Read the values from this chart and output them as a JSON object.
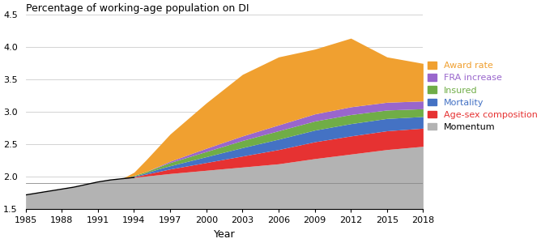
{
  "title": "Percentage of working-age population on DI",
  "xlabel": "Year",
  "years": [
    1985,
    1986,
    1987,
    1988,
    1989,
    1990,
    1991,
    1992,
    1993,
    1994,
    1995,
    1996,
    1997,
    2000,
    2003,
    2006,
    2009,
    2012,
    2015,
    2018
  ],
  "momentum": [
    1.72,
    1.75,
    1.78,
    1.81,
    1.84,
    1.88,
    1.92,
    1.95,
    1.97,
    1.99,
    2.01,
    2.03,
    2.05,
    2.1,
    2.15,
    2.2,
    2.28,
    2.35,
    2.42,
    2.47
  ],
  "age_sex": [
    0.0,
    0.0,
    0.0,
    0.0,
    0.0,
    0.0,
    0.0,
    0.0,
    0.0,
    0.01,
    0.03,
    0.05,
    0.07,
    0.12,
    0.17,
    0.22,
    0.26,
    0.28,
    0.29,
    0.28
  ],
  "mortality": [
    0.0,
    0.0,
    0.0,
    0.0,
    0.0,
    0.0,
    0.0,
    0.0,
    0.0,
    0.01,
    0.02,
    0.04,
    0.05,
    0.09,
    0.13,
    0.16,
    0.18,
    0.19,
    0.19,
    0.18
  ],
  "insured": [
    0.0,
    0.0,
    0.0,
    0.0,
    0.0,
    0.0,
    0.0,
    0.0,
    0.0,
    0.01,
    0.02,
    0.03,
    0.05,
    0.08,
    0.11,
    0.13,
    0.14,
    0.14,
    0.13,
    0.12
  ],
  "fra": [
    0.0,
    0.0,
    0.0,
    0.0,
    0.0,
    0.0,
    0.0,
    0.0,
    0.0,
    0.0,
    0.0,
    0.01,
    0.02,
    0.05,
    0.07,
    0.09,
    0.11,
    0.12,
    0.12,
    0.12
  ],
  "award": [
    0.0,
    0.0,
    0.0,
    0.0,
    0.0,
    0.0,
    0.0,
    0.0,
    0.0,
    0.05,
    0.18,
    0.3,
    0.42,
    0.7,
    0.95,
    1.05,
    1.0,
    1.06,
    0.7,
    0.58
  ],
  "black_line_years": [
    1985,
    1986,
    1987,
    1988,
    1989,
    1990,
    1991,
    1992,
    1993,
    1994
  ],
  "black_line_vals": [
    1.72,
    1.75,
    1.78,
    1.81,
    1.84,
    1.88,
    1.92,
    1.95,
    1.97,
    1.99
  ],
  "ref_line_y": 1.9,
  "ylim": [
    1.5,
    4.5
  ],
  "yticks": [
    1.5,
    2.0,
    2.5,
    3.0,
    3.5,
    4.0,
    4.5
  ],
  "xticks": [
    1985,
    1988,
    1991,
    1994,
    1997,
    2000,
    2003,
    2006,
    2009,
    2012,
    2015,
    2018
  ],
  "colors": {
    "momentum": "#b3b3b3",
    "age_sex": "#e63232",
    "mortality": "#4472c4",
    "insured": "#70ad47",
    "fra": "#9966cc",
    "award": "#f0a030"
  },
  "legend_labels": [
    "Award rate",
    "FRA increase",
    "Insured",
    "Mortality",
    "Age-sex composition",
    "Momentum"
  ],
  "legend_text_colors": [
    "#f0a030",
    "#9966cc",
    "#70ad47",
    "#4472c4",
    "#e63232",
    "#000000"
  ],
  "legend_patch_colors": [
    "#f0a030",
    "#9966cc",
    "#70ad47",
    "#4472c4",
    "#e63232",
    "#b3b3b3"
  ]
}
